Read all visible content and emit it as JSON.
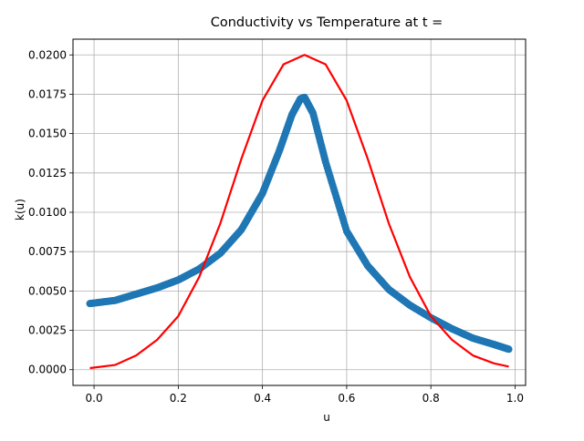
{
  "chart_data": {
    "type": "scatter",
    "title": "Conductivity vs Temperature at t =",
    "xlabel": "u",
    "ylabel": "k(u)",
    "xlim": [
      -0.05,
      1.025
    ],
    "ylim": [
      -0.001,
      0.021
    ],
    "grid": true,
    "x_ticks": [
      0.0,
      0.2,
      0.4,
      0.6,
      0.8,
      1.0
    ],
    "y_ticks": [
      0.0,
      0.0025,
      0.005,
      0.0075,
      0.01,
      0.0125,
      0.015,
      0.0175,
      0.02
    ],
    "x_tick_labels": [
      "0.0",
      "0.2",
      "0.4",
      "0.6",
      "0.8",
      "1.0"
    ],
    "y_tick_labels": [
      "0.0000",
      "0.0025",
      "0.0050",
      "0.0075",
      "0.0100",
      "0.0125",
      "0.0150",
      "0.0175",
      "0.0200"
    ],
    "series": [
      {
        "type": "scatter",
        "color": "#1f77b4",
        "x": [
          -0.01,
          0.05,
          0.1,
          0.15,
          0.2,
          0.25,
          0.3,
          0.35,
          0.4,
          0.44,
          0.47,
          0.49,
          0.5,
          0.52,
          0.55,
          0.6,
          0.65,
          0.7,
          0.75,
          0.8,
          0.85,
          0.9,
          0.95,
          0.985
        ],
        "y": [
          0.0042,
          0.0044,
          0.0048,
          0.0052,
          0.0057,
          0.0064,
          0.0074,
          0.0089,
          0.0112,
          0.0139,
          0.0162,
          0.0172,
          0.0173,
          0.0163,
          0.0132,
          0.0088,
          0.0066,
          0.0051,
          0.0041,
          0.0033,
          0.0026,
          0.002,
          0.0016,
          0.0013
        ]
      },
      {
        "type": "line",
        "color": "#ff0000",
        "x": [
          -0.01,
          0.05,
          0.1,
          0.15,
          0.2,
          0.25,
          0.3,
          0.35,
          0.4,
          0.45,
          0.5,
          0.55,
          0.6,
          0.65,
          0.7,
          0.75,
          0.8,
          0.85,
          0.9,
          0.95,
          0.985
        ],
        "y": [
          0.0001,
          0.0003,
          0.0009,
          0.0019,
          0.0034,
          0.0059,
          0.0093,
          0.0134,
          0.0171,
          0.0194,
          0.02,
          0.0194,
          0.0171,
          0.0134,
          0.0093,
          0.0059,
          0.0034,
          0.0019,
          0.0009,
          0.0004,
          0.0002
        ]
      }
    ]
  }
}
